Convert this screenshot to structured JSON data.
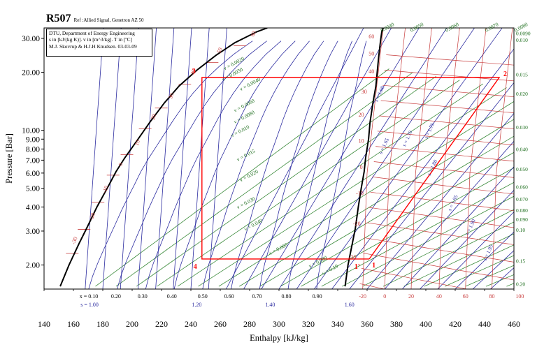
{
  "header": {
    "refrigerant": "R507",
    "reference": "Ref :Allied Signal, Genetron AZ 50"
  },
  "info_box": {
    "line1": "DTU, Department of Energy Engineering",
    "line2": "s in [kJ/(kg K)]. v in [m^3/kg]. T in [ºC]",
    "line3": "M.J. Skovrup & H.J.H Knudsen. 03-03-09"
  },
  "chart_data": {
    "type": "line",
    "title": "R507",
    "xlabel": "Enthalpy [kJ/kg]",
    "ylabel": "Pressure [Bar]",
    "xlim": [
      140,
      460
    ],
    "ylim": [
      1.5,
      34
    ],
    "y_scale": "log",
    "grid": false,
    "x_ticks": [
      "140",
      "160",
      "180",
      "200",
      "220",
      "240",
      "260",
      "280",
      "300",
      "320",
      "340",
      "360",
      "380",
      "400",
      "420",
      "440",
      "460"
    ],
    "y_ticks": [
      {
        "value": 2,
        "label": "2.00"
      },
      {
        "value": 3,
        "label": "3.00"
      },
      {
        "value": 4,
        "label": "4.00"
      },
      {
        "value": 5,
        "label": "5.00"
      },
      {
        "value": 6,
        "label": "6.00"
      },
      {
        "value": 7,
        "label": "7.00"
      },
      {
        "value": 8,
        "label": "8.00"
      },
      {
        "value": 9,
        "label": "9.00"
      },
      {
        "value": 10,
        "label": "10.00"
      },
      {
        "value": 20,
        "label": "20.00"
      },
      {
        "value": 30,
        "label": "30.00"
      }
    ],
    "saturation_liquid": [
      [
        151,
        1.55
      ],
      [
        157,
        2.0
      ],
      [
        164,
        2.6
      ],
      [
        169,
        3.1
      ],
      [
        176,
        4.0
      ],
      [
        183,
        5.0
      ],
      [
        189,
        6.1
      ],
      [
        195,
        7.2
      ],
      [
        204,
        9.0
      ],
      [
        212,
        11.0
      ],
      [
        222,
        13.9
      ],
      [
        232,
        17.0
      ],
      [
        244,
        20.5
      ],
      [
        257,
        24.5
      ],
      [
        270,
        28.5
      ],
      [
        285,
        32.5
      ],
      [
        292,
        34
      ]
    ],
    "saturation_vapor": [
      [
        345,
        1.55
      ],
      [
        347,
        2.0
      ],
      [
        350,
        2.6
      ],
      [
        352,
        3.1
      ],
      [
        354,
        4.0
      ],
      [
        356,
        5.0
      ],
      [
        358,
        6.1
      ],
      [
        359,
        7.2
      ],
      [
        361,
        9.0
      ],
      [
        362,
        11.0
      ],
      [
        364,
        13.9
      ],
      [
        366,
        17.0
      ],
      [
        367,
        20.5
      ],
      [
        368,
        24.5
      ],
      [
        369,
        28.5
      ],
      [
        370,
        32.5
      ],
      [
        371,
        34
      ]
    ],
    "cycle": {
      "points": [
        {
          "label": "1",
          "h": 361.5,
          "p": 2.15
        },
        {
          "label": "2",
          "h": 450.0,
          "p": 18.8
        },
        {
          "label": "3",
          "h": 247.5,
          "p": 18.8
        },
        {
          "label": "4",
          "h": 247.5,
          "p": 2.15
        }
      ],
      "extra_label": "1'",
      "extra_point": {
        "h": 356.0,
        "p": 2.15
      }
    },
    "quality_labels": [
      "x = 0.10",
      "0.20",
      "0.30",
      "0.40",
      "0.50",
      "0.60",
      "0.70",
      "0.80",
      "0.90"
    ],
    "quality_values_h": [
      170.5,
      189,
      207,
      227,
      248,
      266,
      285,
      305,
      326
    ],
    "entropy_bottom_labels": [
      {
        "text": "s = 1.00",
        "h": 171
      },
      {
        "text": "1.20",
        "h": 244
      },
      {
        "text": "1.40",
        "h": 294
      },
      {
        "text": "1.60",
        "h": 348
      }
    ],
    "isotherm_liquid_labels": [
      {
        "text": "-30",
        "h": 161,
        "p": 2.55
      },
      {
        "text": "-20",
        "h": 173,
        "p": 3.4
      },
      {
        "text": "-10",
        "h": 182,
        "p": 4.7
      },
      {
        "text": "0",
        "h": 193,
        "p": 6.5
      },
      {
        "text": "10",
        "h": 204,
        "p": 8.3
      },
      {
        "text": "20",
        "h": 215,
        "p": 11.3
      },
      {
        "text": "30",
        "h": 227,
        "p": 14.5
      },
      {
        "text": "40",
        "h": 242,
        "p": 19.3
      },
      {
        "text": "50",
        "h": 260,
        "p": 25.0
      },
      {
        "text": "60",
        "h": 283,
        "p": 30.5
      }
    ],
    "isotherm_vapor_labels": [
      {
        "text": "60",
        "h": 363,
        "p": 30.0
      },
      {
        "text": "50",
        "h": 363,
        "p": 24.5
      },
      {
        "text": "40",
        "h": 363,
        "p": 19.8
      },
      {
        "text": "30",
        "h": 358,
        "p": 15.5
      },
      {
        "text": "20",
        "h": 356,
        "p": 11.8
      },
      {
        "text": "10",
        "h": 356,
        "p": 8.6
      },
      {
        "text": "0",
        "h": 356,
        "p": 6.3
      },
      {
        "text": "-10",
        "h": 355,
        "p": 4.6
      },
      {
        "text": "-20",
        "h": 353,
        "p": 3.2
      },
      {
        "text": "-30",
        "h": 350,
        "p": 2.15
      }
    ],
    "isotherm_bottom_labels": [
      {
        "text": "-20",
        "h": 357
      },
      {
        "text": "0",
        "h": 372
      },
      {
        "text": "20",
        "h": 390
      },
      {
        "text": "40",
        "h": 409
      },
      {
        "text": "60",
        "h": 427
      },
      {
        "text": "80",
        "h": 445
      },
      {
        "text": "100",
        "h": 464
      }
    ],
    "volume_labels": [
      {
        "text": "v = 0.0020",
        "h": 263,
        "p": 20.5
      },
      {
        "text": "v = 0.0030",
        "h": 262,
        "p": 18.0
      },
      {
        "text": "v = 0.0040",
        "h": 274,
        "p": 16.0
      },
      {
        "text": "v = 0.0060",
        "h": 270,
        "p": 12.4
      },
      {
        "text": "v = 0.0080",
        "h": 270,
        "p": 10.8
      },
      {
        "text": "v = 0.010",
        "h": 268,
        "p": 9.2
      },
      {
        "text": "v = 0.015",
        "h": 272,
        "p": 6.9
      },
      {
        "text": "v = 0.020",
        "h": 274,
        "p": 5.4
      },
      {
        "text": "v = 0.030",
        "h": 272,
        "p": 3.9
      },
      {
        "text": "v = 0.040",
        "h": 277,
        "p": 3.0
      },
      {
        "text": "v = 0.060",
        "h": 294,
        "p": 2.25
      },
      {
        "text": "v = 0.080",
        "h": 321,
        "p": 1.93
      },
      {
        "text": "v = 0.10",
        "h": 330,
        "p": 1.77
      }
    ],
    "volume_top_labels": [
      {
        "text": "0.0040",
        "h": 370
      },
      {
        "text": "0.0050",
        "h": 390
      },
      {
        "text": "0.0060",
        "h": 414
      },
      {
        "text": "0.0070",
        "h": 441
      },
      {
        "text": "0.0080",
        "h": 461
      }
    ],
    "volume_right_labels": [
      {
        "text": "0.0090",
        "p": 32.0
      },
      {
        "text": "0.010",
        "p": 29.5
      },
      {
        "text": "0.015",
        "p": 19.5
      },
      {
        "text": "0.020",
        "p": 15.5
      },
      {
        "text": "0.030",
        "p": 10.4
      },
      {
        "text": "0.040",
        "p": 8.0
      },
      {
        "text": "0.050",
        "p": 6.3
      },
      {
        "text": "0.060",
        "p": 5.1
      },
      {
        "text": "0.070",
        "p": 4.4
      },
      {
        "text": "0.080",
        "p": 3.85
      },
      {
        "text": "0.090",
        "p": 3.45
      },
      {
        "text": "0.10",
        "p": 3.05
      },
      {
        "text": "0.15",
        "p": 2.1
      },
      {
        "text": "0.20",
        "p": 1.6
      }
    ],
    "entropy_labels": [
      {
        "text": "s = 1.60",
        "h": 367,
        "p": 14.0
      },
      {
        "text": "s = 1.65",
        "h": 370,
        "p": 7.5
      },
      {
        "text": "s = 1.70",
        "h": 386,
        "p": 8.2
      },
      {
        "text": "s = 1.75",
        "h": 401,
        "p": 9.0
      },
      {
        "text": "s = 1.80",
        "h": 403,
        "p": 5.8
      },
      {
        "text": "s = 1.85",
        "h": 417,
        "p": 3.8
      },
      {
        "text": "s = 1.90",
        "h": 429,
        "p": 2.85
      },
      {
        "text": "s = 1.95",
        "h": 441,
        "p": 2.1
      }
    ]
  }
}
